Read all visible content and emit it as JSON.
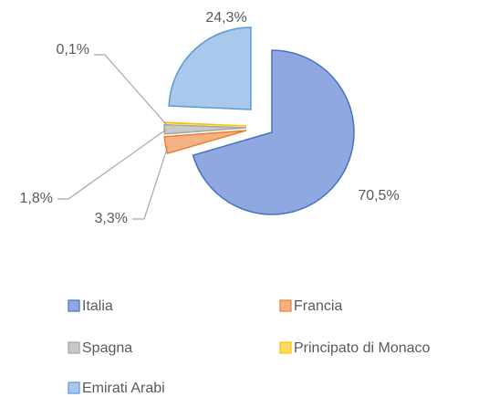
{
  "chart_data": {
    "type": "pie",
    "categories": [
      "Italia",
      "Francia",
      "Spagna",
      "Principato di Monaco",
      "Emirati Arabi"
    ],
    "values": [
      70.5,
      3.3,
      1.8,
      0.1,
      24.3
    ],
    "value_labels": [
      "70,5%",
      "3,3%",
      "1,8%",
      "0,1%",
      "24,3%"
    ],
    "colors": [
      "#8fa8e0",
      "#f4b183",
      "#c9c9c9",
      "#ffd966",
      "#a9c8ec"
    ],
    "legend": "bottom"
  }
}
